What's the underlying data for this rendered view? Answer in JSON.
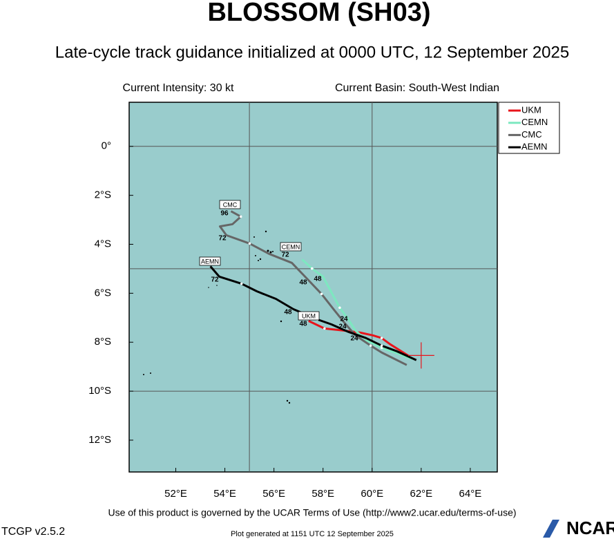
{
  "chart_data": {
    "type": "track",
    "title": "BLOSSOM (SH03)",
    "subtitle": "Late-cycle track guidance initialized at 0000 UTC, 12 September 2025",
    "intensity": "Current Intensity: 30 kt",
    "basin": "Current Basin: South-West Indian",
    "xlim": [
      50.1,
      65.1
    ],
    "ylim": [
      -13.3,
      1.8
    ],
    "xticks": [
      {
        "value": 52,
        "label": "52°E"
      },
      {
        "value": 54,
        "label": "54°E"
      },
      {
        "value": 56,
        "label": "56°E"
      },
      {
        "value": 58,
        "label": "58°E"
      },
      {
        "value": 60,
        "label": "60°E"
      },
      {
        "value": 62,
        "label": "62°E"
      },
      {
        "value": 64,
        "label": "64°E"
      }
    ],
    "yticks": [
      {
        "value": 0,
        "label": "0°"
      },
      {
        "value": -2,
        "label": "2°S"
      },
      {
        "value": -4,
        "label": "4°S"
      },
      {
        "value": -6,
        "label": "6°S"
      },
      {
        "value": -8,
        "label": "8°S"
      },
      {
        "value": -10,
        "label": "10°S"
      },
      {
        "value": -12,
        "label": "12°S"
      }
    ],
    "xgrid": [
      55,
      60
    ],
    "ygrid": [
      0,
      -5,
      -10
    ],
    "current_position": {
      "x": 62.0,
      "y": -8.54,
      "color": "#e8141b"
    },
    "series": [
      {
        "name": "UKM",
        "color": "#e8141b",
        "hour_labels": [
          "48"
        ],
        "x": [
          61.49,
          60.73,
          60.39,
          60.03,
          59.52,
          58.82,
          58.06,
          57.41
        ],
        "values": [
          -8.56,
          -8.08,
          -7.83,
          -7.72,
          -7.61,
          -7.52,
          -7.44,
          -7.13
        ]
      },
      {
        "name": "CEMN",
        "color": "#7de8c0",
        "hour_labels": [
          "72",
          "48",
          "24"
        ],
        "x": [
          61.63,
          61.01,
          60.39,
          59.77,
          59.32,
          58.99,
          58.68,
          58.42,
          58.23,
          58.0,
          57.55,
          57.15
        ],
        "values": [
          -8.7,
          -8.45,
          -8.23,
          -7.92,
          -7.52,
          -7.01,
          -6.59,
          -6.11,
          -5.75,
          -5.32,
          -4.99,
          -4.62
        ]
      },
      {
        "name": "CMC",
        "color": "#666666",
        "hour_labels": [
          "96",
          "72",
          "48",
          "24"
        ],
        "x": [
          61.41,
          60.39,
          59.94,
          59.32,
          58.9,
          58.45,
          57.94,
          57.38,
          56.73,
          55.8,
          55.01,
          54.06,
          53.8,
          54.31,
          54.65,
          54.25
        ],
        "values": [
          -8.93,
          -8.42,
          -8.14,
          -7.72,
          -7.24,
          -6.68,
          -6.03,
          -5.44,
          -4.76,
          -4.39,
          -3.97,
          -3.63,
          -3.27,
          -3.18,
          -2.87,
          -2.65
        ]
      },
      {
        "name": "AEMN",
        "color": "#000000",
        "hour_labels": [
          "72",
          "48",
          "24"
        ],
        "x": [
          61.8,
          61.01,
          60.39,
          59.75,
          59.04,
          58.34,
          57.77,
          56.79,
          56.08,
          55.3,
          54.68,
          53.77,
          53.41
        ],
        "values": [
          -8.73,
          -8.37,
          -8.14,
          -7.83,
          -7.58,
          -7.27,
          -7.07,
          -6.65,
          -6.23,
          -5.92,
          -5.61,
          -5.32,
          -4.9
        ]
      }
    ],
    "terms": "Use of this product is governed by the UCAR Terms of Use (http://www2.ucar.edu/terms-of-use)",
    "version": "TCGP v2.5.2",
    "generated": "Plot generated at 1151 UTC   12 September 2025",
    "logo": "NCAR"
  }
}
